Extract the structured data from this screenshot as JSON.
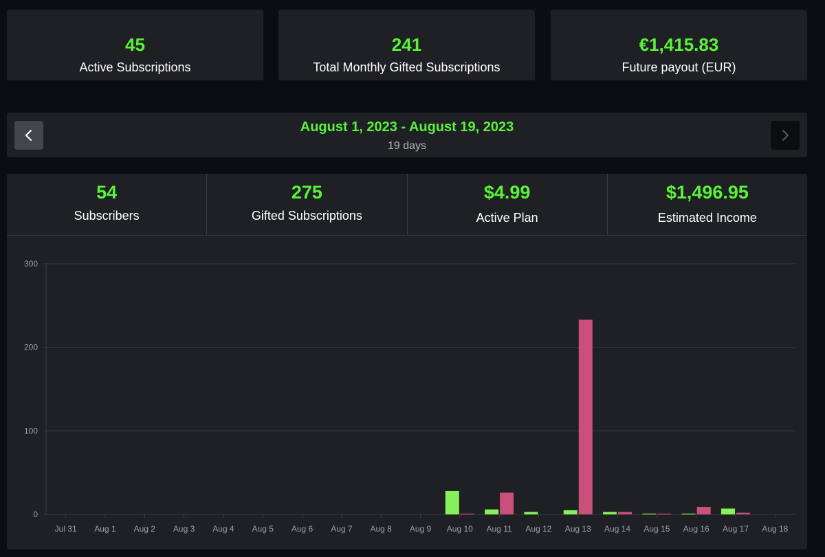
{
  "summary": [
    {
      "value": "45",
      "label": "Active Subscriptions"
    },
    {
      "value": "241",
      "label": "Total Monthly Gifted Subscriptions"
    },
    {
      "value": "€1,415.83",
      "label": "Future payout (EUR)"
    }
  ],
  "date_nav": {
    "range": "August 1, 2023 - August 19, 2023",
    "duration": "19 days",
    "prev_icon": "chevron-left-icon",
    "next_icon": "chevron-right-icon"
  },
  "period_stats": [
    {
      "value": "54",
      "label": "Subscribers"
    },
    {
      "value": "275",
      "label": "Gifted Subscriptions"
    },
    {
      "value": "$4.99",
      "label": "Active Plan"
    },
    {
      "value": "$1,496.95",
      "label": "Estimated Income"
    }
  ],
  "colors": {
    "accent_green": "#5af23a",
    "series_green": "#86f15b",
    "series_pink": "#c9507b",
    "background": "#0b0e10",
    "card": "#1f2024"
  },
  "chart_data": {
    "type": "bar",
    "categories": [
      "Jul 31",
      "Aug 1",
      "Aug 2",
      "Aug 3",
      "Aug 4",
      "Aug 5",
      "Aug 6",
      "Aug 7",
      "Aug 8",
      "Aug 9",
      "Aug 10",
      "Aug 11",
      "Aug 12",
      "Aug 13",
      "Aug 14",
      "Aug 15",
      "Aug 16",
      "Aug 17",
      "Aug 18"
    ],
    "series": [
      {
        "color": "#86f15b",
        "values": [
          0,
          0,
          0,
          0,
          0,
          0,
          0,
          0,
          0,
          0,
          28,
          6,
          3,
          5,
          3,
          1,
          1,
          7,
          0
        ]
      },
      {
        "color": "#c9507b",
        "values": [
          0,
          0,
          0,
          0,
          0,
          0,
          0,
          0,
          0,
          0,
          1,
          26,
          0,
          233,
          3,
          1,
          9,
          2,
          0
        ]
      }
    ],
    "yticks": [
      0,
      100,
      200,
      300
    ],
    "ylim": [
      0,
      300
    ],
    "grid": true,
    "legend": "none"
  }
}
